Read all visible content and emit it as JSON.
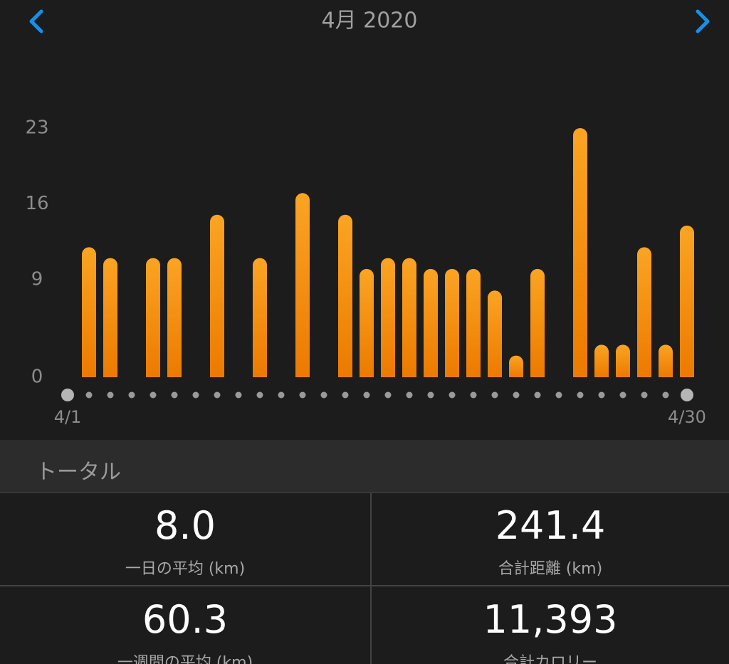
{
  "header": {
    "title": "4月 2020"
  },
  "chart_data": {
    "type": "bar",
    "categories": [
      "4/1",
      null,
      null,
      null,
      null,
      null,
      null,
      null,
      null,
      null,
      null,
      null,
      null,
      null,
      null,
      null,
      null,
      null,
      null,
      null,
      null,
      null,
      null,
      null,
      null,
      null,
      null,
      null,
      null,
      "4/30"
    ],
    "values": [
      0,
      12,
      11,
      0,
      11,
      11,
      0,
      15,
      0,
      11,
      0,
      17,
      0,
      15,
      10,
      11,
      11,
      10,
      10,
      10,
      8,
      2,
      10,
      0,
      23,
      3,
      3,
      12,
      3,
      14
    ],
    "color": "#f5900c",
    "ylim": [
      0,
      23
    ],
    "yticks": [
      0,
      9,
      16,
      23
    ]
  },
  "totals": {
    "title": "トータル",
    "stats": [
      {
        "value": "8.0",
        "label": "一日の平均 (km)"
      },
      {
        "value": "241.4",
        "label": "合計距離 (km)"
      },
      {
        "value": "60.3",
        "label": "一週間の平均 (km)"
      },
      {
        "value": "11,393",
        "label": "合計カロリー"
      }
    ]
  }
}
